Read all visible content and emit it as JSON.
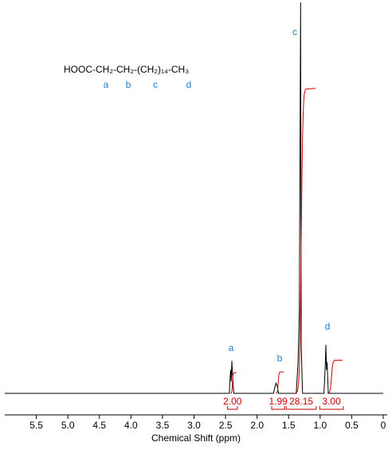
{
  "chart_data": {
    "type": "nmr",
    "xlabel": "Chemical Shift (ppm)",
    "xlim": [
      6.0,
      0
    ],
    "ylim": [
      0,
      100
    ],
    "xticks": [
      5.5,
      {
        "value": 5,
        "label": "5.0"
      },
      4.5,
      {
        "value": 4,
        "label": "4.0"
      },
      3.5,
      {
        "value": 3,
        "label": "3.0"
      },
      2.5,
      {
        "value": 2,
        "label": "2.0"
      },
      1.5,
      {
        "value": 1,
        "label": "1.0"
      },
      0.5,
      0
    ],
    "formula": "HOOC-CH₂-CH₂-(CH₂)₁₄-CH₃",
    "formula_labels": [
      "a",
      "b",
      "c",
      "d"
    ],
    "peak_labels": [
      "a",
      "b",
      "c",
      "d"
    ],
    "series": [
      {
        "color": "#000000",
        "x": [
          6.0,
          2.44,
          2.42,
          2.41,
          2.4,
          2.39,
          2.37,
          1.74,
          1.72,
          1.7,
          1.68,
          1.66,
          1.38,
          1.35,
          1.33,
          1.31,
          1.3,
          1.28,
          0.94,
          0.92,
          0.91,
          0.9,
          0.89,
          0.87,
          0
        ],
        "values": [
          0,
          0,
          6,
          3,
          8.3,
          5,
          0,
          0,
          1.5,
          2.6,
          1.8,
          0,
          0,
          8,
          21,
          100,
          12,
          0,
          0,
          7,
          12.4,
          6,
          8,
          0,
          0
        ]
      }
    ],
    "integrals": {
      "color": "#cc0000",
      "ranges": [
        [
          2.48,
          2.3
        ],
        [
          1.78,
          1.55
        ],
        [
          1.55,
          1.05
        ],
        [
          1.02,
          0.62
        ]
      ],
      "heights": [
        5.3,
        5.5,
        78,
        8.5
      ],
      "values": [
        2,
        1.99,
        28.15,
        3
      ],
      "value_labels": [
        "2.00",
        "1.99",
        "28.15",
        "3.00"
      ]
    }
  }
}
